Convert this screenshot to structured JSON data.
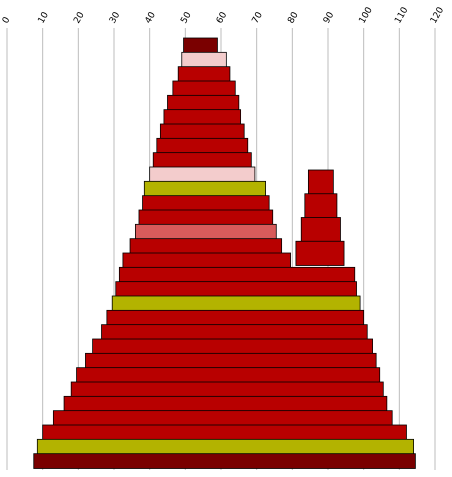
{
  "chart_data": {
    "type": "area",
    "title": "",
    "xlabel": "",
    "ylabel": "",
    "xlim": [
      0,
      120
    ],
    "x_ticks": [
      "0",
      "10",
      "20",
      "30",
      "40",
      "50",
      "60",
      "70",
      "80",
      "90",
      "100",
      "110",
      "120"
    ],
    "grid": "vertical",
    "legend": "none",
    "colors": {
      "main": "#b80000",
      "olive": "#b3b300",
      "pink": "#d85b5b",
      "light_pink": "#f3cccc",
      "dark": "#7a0000"
    },
    "layers_note_visible": "",
    "bands": [
      {
        "left": 49.5,
        "right": 59.0,
        "color": "dark"
      },
      {
        "left": 49.0,
        "right": 61.5,
        "color": "light_pink"
      },
      {
        "left": 48.0,
        "right": 62.5,
        "color": "main"
      },
      {
        "left": 46.5,
        "right": 64.0,
        "color": "main"
      },
      {
        "left": 45.0,
        "right": 65.0,
        "color": "main"
      },
      {
        "left": 44.0,
        "right": 65.5,
        "color": "main"
      },
      {
        "left": 43.0,
        "right": 66.5,
        "color": "main"
      },
      {
        "left": 42.0,
        "right": 67.5,
        "color": "main"
      },
      {
        "left": 41.0,
        "right": 68.5,
        "color": "main"
      },
      {
        "left": 40.0,
        "right": 69.5,
        "color": "light_pink"
      },
      {
        "left": 38.5,
        "right": 72.5,
        "color": "olive"
      },
      {
        "left": 38.0,
        "right": 73.5,
        "color": "main"
      },
      {
        "left": 37.0,
        "right": 74.5,
        "color": "main"
      },
      {
        "left": 36.0,
        "right": 75.5,
        "color": "pink"
      },
      {
        "left": 34.5,
        "right": 77.0,
        "color": "main"
      },
      {
        "left": 32.5,
        "right": 79.5,
        "color": "main"
      },
      {
        "left": 31.5,
        "right": 97.5,
        "color": "main"
      },
      {
        "left": 30.5,
        "right": 98.0,
        "color": "main"
      },
      {
        "left": 29.5,
        "right": 99.0,
        "color": "olive"
      },
      {
        "left": 28.0,
        "right": 100.0,
        "color": "main"
      },
      {
        "left": 26.5,
        "right": 101.0,
        "color": "main"
      },
      {
        "left": 24.0,
        "right": 102.5,
        "color": "main"
      },
      {
        "left": 22.0,
        "right": 103.5,
        "color": "main"
      },
      {
        "left": 19.5,
        "right": 104.5,
        "color": "main"
      },
      {
        "left": 18.0,
        "right": 105.5,
        "color": "main"
      },
      {
        "left": 16.0,
        "right": 106.5,
        "color": "main"
      },
      {
        "left": 13.0,
        "right": 108.0,
        "color": "main"
      },
      {
        "left": 10.0,
        "right": 112.0,
        "color": "main"
      },
      {
        "left": 8.5,
        "right": 114.0,
        "color": "olive"
      },
      {
        "left": 7.5,
        "right": 114.5,
        "color": "dark"
      }
    ],
    "secondary_peak": [
      {
        "left": 84.5,
        "right": 91.5,
        "color": "main"
      },
      {
        "left": 83.5,
        "right": 92.5,
        "color": "main"
      },
      {
        "left": 82.5,
        "right": 93.5,
        "color": "main"
      },
      {
        "left": 81.0,
        "right": 94.5,
        "color": "main"
      }
    ]
  }
}
